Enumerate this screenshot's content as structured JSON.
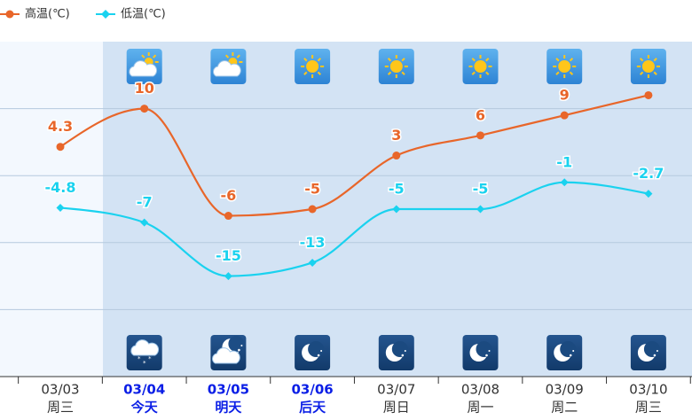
{
  "chart_data": {
    "type": "line",
    "categories": [
      "03/03",
      "03/04",
      "03/05",
      "03/06",
      "03/07",
      "03/08",
      "03/09",
      "03/10"
    ],
    "day_labels": [
      "周三",
      "今天",
      "明天",
      "后天",
      "周日",
      "周一",
      "周二",
      "周三"
    ],
    "highlighted": [
      false,
      true,
      true,
      true,
      false,
      false,
      false,
      false
    ],
    "highlight_color": "#0a1ee6",
    "series": [
      {
        "name": "高温(℃)",
        "color": "#e8662a",
        "marker": "circle",
        "values": [
          4.3,
          10,
          -6,
          -5,
          3,
          6,
          9,
          12
        ],
        "value_labels": [
          "4.3",
          "10",
          "-6",
          "-5",
          "3",
          "6",
          "9",
          null
        ]
      },
      {
        "name": "低温(℃)",
        "color": "#1ad2ef",
        "marker": "diamond",
        "values": [
          -4.8,
          -7,
          -15,
          -13,
          -5,
          -5,
          -1,
          -2.7
        ],
        "value_labels": [
          "-4.8",
          "-7",
          "-15",
          "-13",
          "-5",
          "-5",
          "-1",
          "-2.7"
        ]
      }
    ],
    "ylim": [
      -30,
      20
    ],
    "yticks": [
      -20,
      -10,
      0,
      10
    ],
    "grid": true
  }
}
